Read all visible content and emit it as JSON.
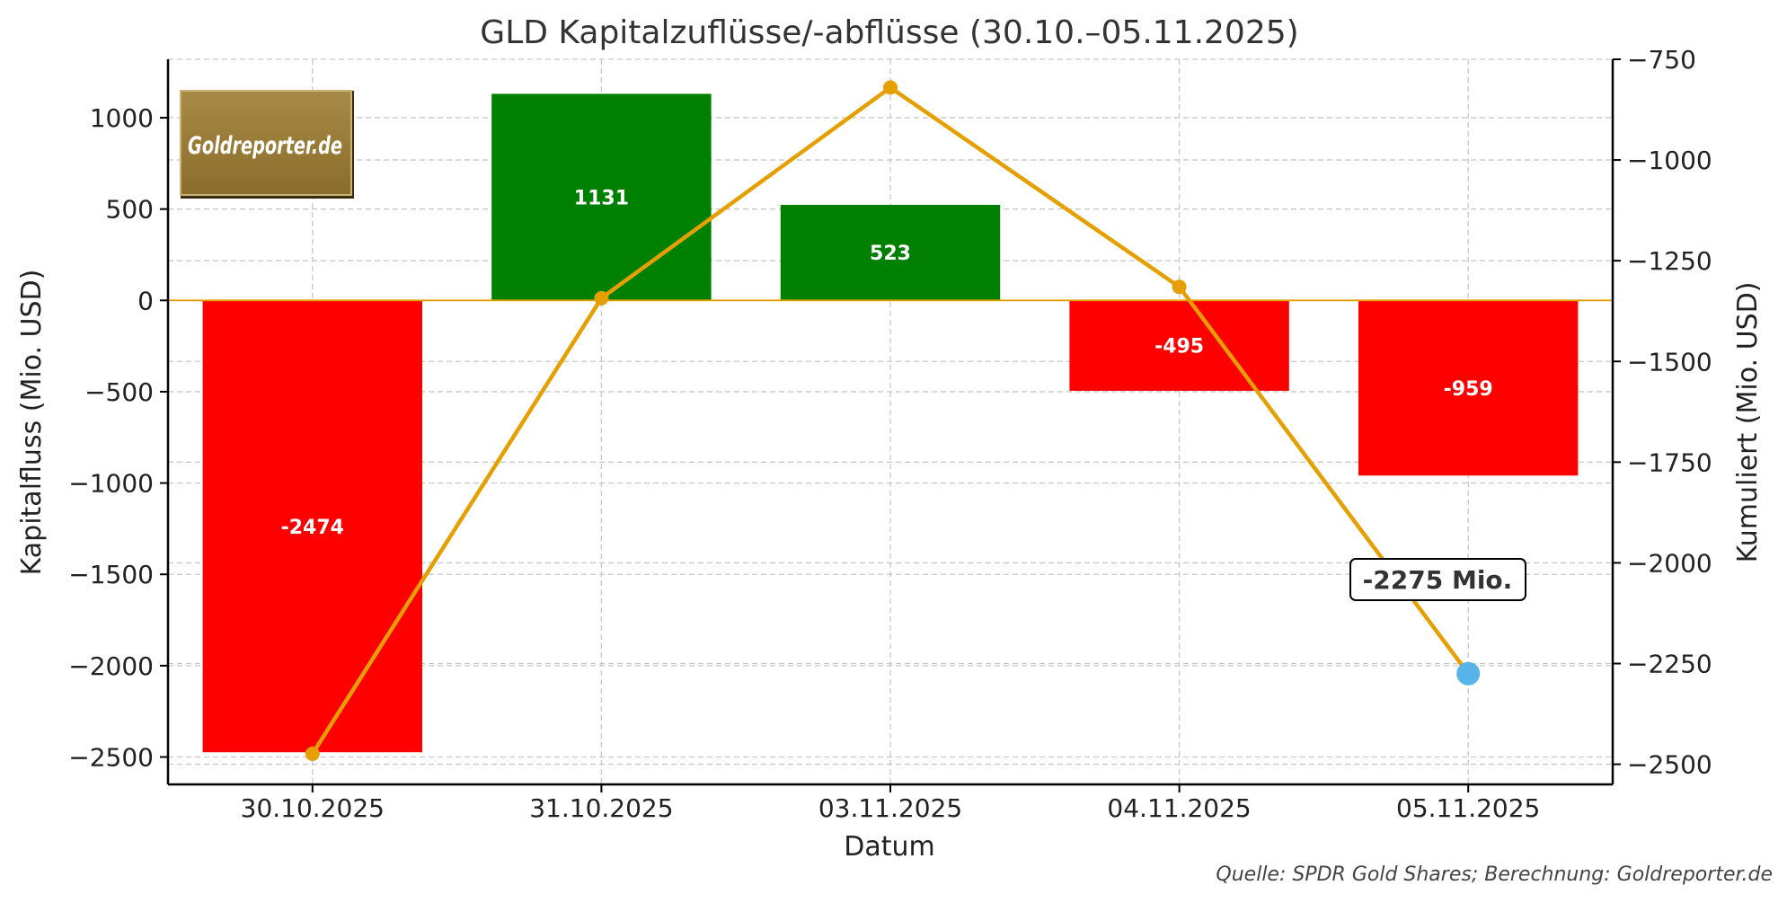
{
  "chart_data": {
    "type": "bar",
    "title": "GLD Kapitalzuflüsse/-abflüsse (30.10.–05.11.2025)",
    "xlabel": "Datum",
    "ylabel": "Kapitalfluss (Mio. USD)",
    "y2label": "Kumuliert (Mio. USD)",
    "categories": [
      "30.10.2025",
      "31.10.2025",
      "03.11.2025",
      "04.11.2025",
      "05.11.2025"
    ],
    "series": [
      {
        "type": "bar",
        "values": [
          -2474,
          1131,
          523,
          -495,
          -959
        ],
        "value_labels": [
          "-2474",
          "1131",
          "523",
          "-495",
          "-959"
        ],
        "positive_color": "#008000",
        "negative_color": "#ff0000"
      },
      {
        "type": "line",
        "axis": "right",
        "values": [
          -2474,
          -1343,
          -820,
          -1315,
          -2275
        ],
        "color": "#e69f00",
        "highlight_last_color": "#56b4e9"
      }
    ],
    "ylim": [
      -2650,
      1320
    ],
    "yticks": [
      1000,
      500,
      0,
      -500,
      -1000,
      -1500,
      -2000,
      -2500
    ],
    "y2lim": [
      -2550,
      -750
    ],
    "y2ticks": [
      -750,
      -1000,
      -1250,
      -1500,
      -1750,
      -2000,
      -2250,
      -2500
    ],
    "grid": true,
    "zero_line_color": "#e69f00",
    "annotation": "-2275 Mio."
  },
  "logo": {
    "text": "Goldreporter.de"
  },
  "source": "Quelle: SPDR Gold Shares; Berechnung: Goldreporter.de"
}
